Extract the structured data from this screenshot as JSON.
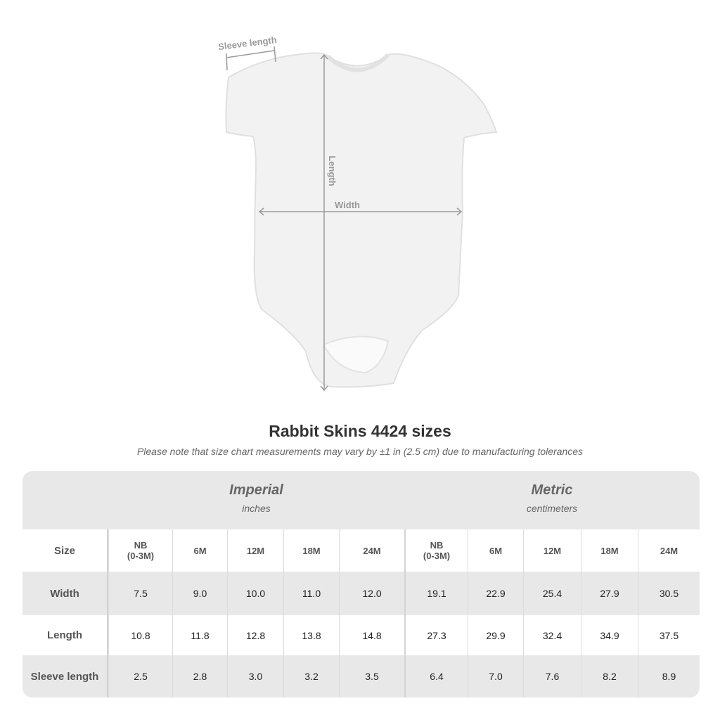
{
  "diagram": {
    "labels": {
      "sleeve": "Sleeve length",
      "length": "Length",
      "width": "Width"
    },
    "colors": {
      "garment": "#f2f2f2",
      "measure_line": "#9a9a9a"
    }
  },
  "title": "Rabbit Skins 4424 sizes",
  "note": "Please note that size chart measurements may vary by ±1 in (2.5 cm) due to manufacturing tolerances",
  "table": {
    "groups": [
      {
        "title": "Imperial",
        "unit": "inches"
      },
      {
        "title": "Metric",
        "unit": "centimeters"
      }
    ],
    "size_label": "Size",
    "sizes": [
      "NB\n(0-3M)",
      "6M",
      "12M",
      "18M",
      "24M",
      "NB\n(0-3M)",
      "6M",
      "12M",
      "18M",
      "24M"
    ],
    "rows": [
      {
        "label": "Width",
        "values": [
          "7.5",
          "9.0",
          "10.0",
          "11.0",
          "12.0",
          "19.1",
          "22.9",
          "25.4",
          "27.9",
          "30.5"
        ]
      },
      {
        "label": "Length",
        "values": [
          "10.8",
          "11.8",
          "12.8",
          "13.8",
          "14.8",
          "27.3",
          "29.9",
          "32.4",
          "34.9",
          "37.5"
        ]
      },
      {
        "label": "Sleeve length",
        "values": [
          "2.5",
          "2.8",
          "3.0",
          "3.2",
          "3.5",
          "6.4",
          "7.0",
          "7.6",
          "8.2",
          "8.9"
        ]
      }
    ]
  }
}
